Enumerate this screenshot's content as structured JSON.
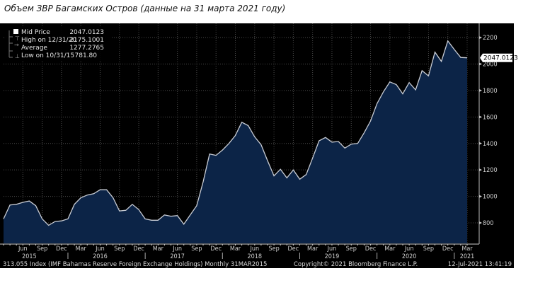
{
  "title": "Объем ЗВР Багамских Остров (данные на 31 марта 2021 году)",
  "legend": {
    "items": [
      {
        "label": "Mid Price",
        "value": "2047.0123",
        "icon": "square-icon"
      },
      {
        "label": "High on 12/31/20",
        "value": "2175.1001",
        "icon": "high-marker-icon"
      },
      {
        "label": "Average",
        "value": "1277.2765",
        "icon": "average-marker-icon"
      },
      {
        "label": "Low on 10/31/15",
        "value": "781.80",
        "icon": "low-marker-icon"
      }
    ]
  },
  "last_value_label": "2047.0123",
  "footer": {
    "left": "313.055 Index (IMF Bahamas Reserve Foreign Exchange Holdings)  Monthly 31MAR2015",
    "center": "Copyright© 2021 Bloomberg Finance L.P.",
    "right": "12-Jul-2021 13:41:19"
  },
  "colors": {
    "background": "#000000",
    "area": "#0c2447",
    "line": "#c8ccd4",
    "grid": "#4a4a4a"
  },
  "chart_data": {
    "type": "area",
    "title": "Объем ЗВР Багамских Остров (данные на 31 марта 2021 году)",
    "xlabel": "",
    "ylabel": "",
    "start": "2015-03",
    "frequency": "monthly",
    "ylim": [
      645,
      2270
    ],
    "yticks": [
      800,
      1000,
      1200,
      1400,
      1600,
      1800,
      2000,
      2200
    ],
    "month_ticks": [
      {
        "label": "Jun",
        "index": 3
      },
      {
        "label": "Sep",
        "index": 6
      },
      {
        "label": "Dec",
        "index": 9
      },
      {
        "label": "Mar",
        "index": 12
      },
      {
        "label": "Jun",
        "index": 15
      },
      {
        "label": "Sep",
        "index": 18
      },
      {
        "label": "Dec",
        "index": 21
      },
      {
        "label": "Mar",
        "index": 24
      },
      {
        "label": "Jun",
        "index": 27
      },
      {
        "label": "Sep",
        "index": 30
      },
      {
        "label": "Dec",
        "index": 33
      },
      {
        "label": "Mar",
        "index": 36
      },
      {
        "label": "Jun",
        "index": 39
      },
      {
        "label": "Sep",
        "index": 42
      },
      {
        "label": "Dec",
        "index": 45
      },
      {
        "label": "Mar",
        "index": 48
      },
      {
        "label": "Jun",
        "index": 51
      },
      {
        "label": "Sep",
        "index": 54
      },
      {
        "label": "Dec",
        "index": 57
      },
      {
        "label": "Mar",
        "index": 60
      },
      {
        "label": "Jun",
        "index": 63
      },
      {
        "label": "Sep",
        "index": 66
      },
      {
        "label": "Dec",
        "index": 69
      },
      {
        "label": "Mar",
        "index": 72
      }
    ],
    "year_ticks": [
      {
        "label": "2015",
        "index": 4
      },
      {
        "label": "2016",
        "index": 15
      },
      {
        "label": "2017",
        "index": 27
      },
      {
        "label": "2018",
        "index": 39
      },
      {
        "label": "2019",
        "index": 51
      },
      {
        "label": "2020",
        "index": 63
      },
      {
        "label": "2021",
        "index": 72
      }
    ],
    "year_separators": [
      10,
      22,
      34,
      46,
      58,
      70
    ],
    "grid": true,
    "legend_position": "top-left",
    "series": [
      {
        "name": "Mid Price",
        "values": [
          830,
          935,
          940,
          955,
          965,
          930,
          830,
          782,
          810,
          815,
          830,
          940,
          990,
          1010,
          1020,
          1050,
          1050,
          990,
          890,
          895,
          940,
          900,
          830,
          820,
          820,
          860,
          850,
          855,
          790,
          860,
          930,
          1110,
          1320,
          1310,
          1350,
          1400,
          1460,
          1560,
          1535,
          1450,
          1390,
          1270,
          1155,
          1205,
          1140,
          1200,
          1130,
          1165,
          1290,
          1420,
          1445,
          1410,
          1415,
          1365,
          1395,
          1400,
          1480,
          1570,
          1700,
          1790,
          1865,
          1845,
          1775,
          1860,
          1805,
          1950,
          1910,
          2090,
          2020,
          2175.1,
          2110,
          2050,
          2047.0123
        ]
      }
    ]
  }
}
